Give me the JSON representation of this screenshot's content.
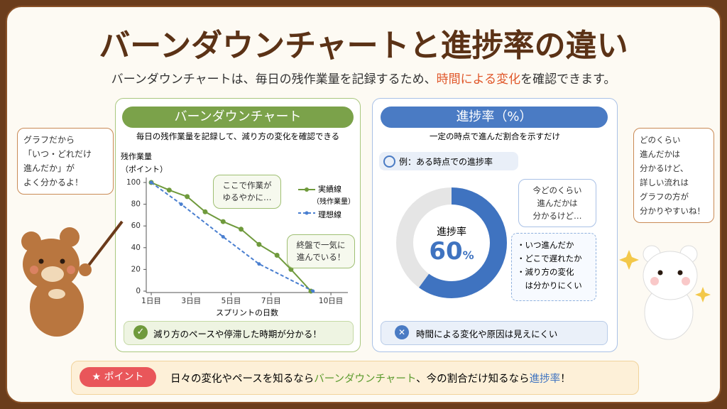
{
  "header": {
    "title": "バーンダウンチャートと進捗率の違い",
    "subtitle": [
      "バーンダウンチャートは、毎日の残作業量を記録するため、",
      "時間による変化",
      "を確認できます。"
    ]
  },
  "burndown": {
    "heading": "バーンダウンチャート",
    "description": "毎日の残作業量を記録して、減り方の変化を確認できる",
    "chart": {
      "type": "line",
      "y_label": "残作業量\n（ポイント）",
      "x_label": "スプリントの日数",
      "xlim": [
        0.75,
        10.85
      ],
      "xticks": [
        {
          "value": 1,
          "label": "1日目"
        },
        {
          "value": 3,
          "label": "3日目"
        },
        {
          "value": 5,
          "label": "5日目"
        },
        {
          "value": 7,
          "label": "7日目"
        },
        {
          "value": 10,
          "label": "10日目"
        }
      ],
      "ylim": [
        0,
        100
      ],
      "yticks": [
        0,
        20,
        40,
        60,
        80,
        100
      ],
      "series": [
        {
          "name": "実績線",
          "name_note": "（残作業量）",
          "color": "#6f9a3c",
          "x": [
            1,
            1.9,
            2.8,
            3.7,
            4.6,
            5.5,
            6.4,
            7.3,
            8,
            9
          ],
          "values": [
            100,
            93,
            87,
            73,
            64,
            57,
            43,
            33,
            20,
            0
          ]
        },
        {
          "name": "理想線",
          "color": "#4a7fd0",
          "dashed": true,
          "x": [
            1,
            2.5,
            4.6,
            6.4,
            9.1
          ],
          "values": [
            100,
            80,
            50,
            25,
            0
          ]
        }
      ],
      "annotations": [
        "ここで作業が\nゆるやかに…",
        "終盤で一気に\n進んでいる！"
      ]
    },
    "footer": "減り方のペースや停滞した時期が分かる！"
  },
  "progress": {
    "heading": "進捗率（%）",
    "description": "一定の時点で進んだ割合を示すだけ",
    "example": "例：ある時点での進捗率",
    "chart": {
      "type": "donut",
      "label": "進捗率",
      "value": 60,
      "unit": "%",
      "color": "#3f73c0",
      "rest_color": "#e5e5e5"
    },
    "note": "今どのくらい\n進んだかは\n分かるけど…",
    "limits": [
      "・いつ進んだか",
      "・どこで遅れたか",
      "・減り方の変化\n　は分かりにくい"
    ],
    "footer": "時間による変化や原因は見えにくい"
  },
  "characters": {
    "bear_left": "グラフだから\n「いつ・どれだけ\n進んだか」が\nよく分かるよ！",
    "bear_right": "どのくらい\n進んだかは\n分かるけど、\n詳しい流れは\nグラフの方が\n分かりやすいね！"
  },
  "point": {
    "badge": "ポイント",
    "text": [
      "日々の変化やペースを知るなら",
      "バーンダウンチャート",
      "、今の割合だけ知るなら",
      "進捗率",
      "！"
    ]
  }
}
